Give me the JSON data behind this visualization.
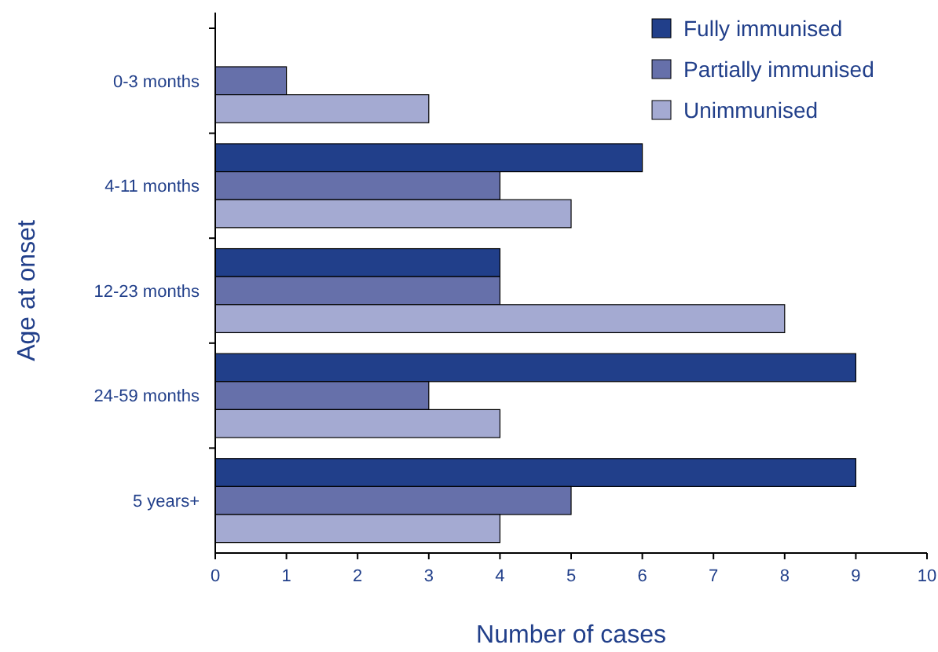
{
  "chart_data": {
    "type": "bar",
    "orientation": "horizontal",
    "xlabel": "Number of cases",
    "ylabel": "Age at onset",
    "categories": [
      "0-3 months",
      "4-11 months",
      "12-23 months",
      "24-59 months",
      "5 years+"
    ],
    "series": [
      {
        "name": "Fully immunised",
        "color": "#213f8a",
        "values": [
          0,
          6,
          4,
          9,
          9
        ]
      },
      {
        "name": "Partially immunised",
        "color": "#6670aa",
        "values": [
          1,
          4,
          4,
          3,
          5
        ]
      },
      {
        "name": "Unimmunised",
        "color": "#a4aad2",
        "values": [
          3,
          5,
          8,
          4,
          4
        ]
      }
    ],
    "xlim": [
      0,
      10
    ],
    "xticks": [
      0,
      1,
      2,
      3,
      4,
      5,
      6,
      7,
      8,
      9,
      10
    ],
    "grid": false,
    "legend": "top right"
  }
}
